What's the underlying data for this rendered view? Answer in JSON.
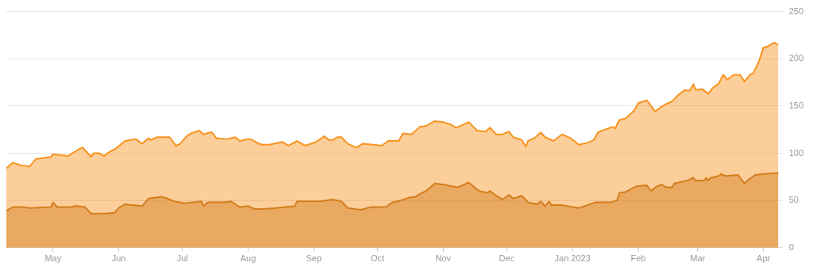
{
  "chart_data": {
    "type": "area",
    "legend": false,
    "grid": "y",
    "xlim": [
      "2022-04-09",
      "2023-04-10"
    ],
    "xticks": [
      {
        "value": "2022-05-01",
        "label": "May"
      },
      {
        "value": "2022-06-01",
        "label": "Jun"
      },
      {
        "value": "2022-07-01",
        "label": "Jul"
      },
      {
        "value": "2022-08-01",
        "label": "Aug"
      },
      {
        "value": "2022-09-01",
        "label": "Sep"
      },
      {
        "value": "2022-10-01",
        "label": "Oct"
      },
      {
        "value": "2022-11-01",
        "label": "Nov"
      },
      {
        "value": "2022-12-01",
        "label": "Dec"
      },
      {
        "value": "2023-01-01",
        "label": "Jan 2023"
      },
      {
        "value": "2023-02-01",
        "label": "Feb"
      },
      {
        "value": "2023-03-01",
        "label": "Mar"
      },
      {
        "value": "2023-04-01",
        "label": "Apr"
      }
    ],
    "ylim": [
      0,
      250
    ],
    "yticks": [
      0,
      50,
      100,
      150,
      200,
      250
    ],
    "series": [
      {
        "color": "#d47d1c",
        "x": [
          "2022-04-09",
          "2022-04-12",
          "2022-04-17",
          "2022-04-20",
          "2022-04-30",
          "2022-05-01",
          "2022-05-03",
          "2022-05-09",
          "2022-05-12",
          "2022-05-16",
          "2022-05-19",
          "2022-05-26",
          "2022-05-30",
          "2022-06-01",
          "2022-06-04",
          "2022-06-12",
          "2022-06-15",
          "2022-06-21",
          "2022-06-24",
          "2022-06-27",
          "2022-07-02",
          "2022-07-10",
          "2022-07-11",
          "2022-07-13",
          "2022-07-21",
          "2022-07-24",
          "2022-07-28",
          "2022-08-01",
          "2022-08-04",
          "2022-08-08",
          "2022-08-14",
          "2022-08-23",
          "2022-08-24",
          "2022-09-04",
          "2022-09-10",
          "2022-09-14",
          "2022-09-17",
          "2022-09-23",
          "2022-09-28",
          "2022-10-05",
          "2022-10-08",
          "2022-10-12",
          "2022-10-16",
          "2022-10-19",
          "2022-10-21",
          "2022-10-24",
          "2022-10-28",
          "2022-11-01",
          "2022-11-05",
          "2022-11-08",
          "2022-11-11",
          "2022-11-13",
          "2022-11-18",
          "2022-11-22",
          "2022-11-23",
          "2022-11-26",
          "2022-11-29",
          "2022-12-02",
          "2022-12-04",
          "2022-12-08",
          "2022-12-11",
          "2022-12-15",
          "2022-12-17",
          "2022-12-19",
          "2022-12-21",
          "2022-12-22",
          "2022-12-27",
          "2023-01-04",
          "2023-01-08",
          "2023-01-12",
          "2023-01-19",
          "2023-01-22",
          "2023-01-23",
          "2023-01-26",
          "2023-01-31",
          "2023-02-05",
          "2023-02-07",
          "2023-02-09",
          "2023-02-12",
          "2023-02-14",
          "2023-02-17",
          "2023-02-18",
          "2023-02-24",
          "2023-02-27",
          "2023-02-28",
          "2023-03-04",
          "2023-03-05",
          "2023-03-06",
          "2023-03-07",
          "2023-03-11",
          "2023-03-12",
          "2023-03-14",
          "2023-03-20",
          "2023-03-22",
          "2023-03-23",
          "2023-03-25",
          "2023-03-28",
          "2023-04-01",
          "2023-04-08"
        ],
        "values": [
          39,
          43,
          43,
          42,
          43,
          48,
          43,
          43,
          44,
          43,
          36,
          36,
          37,
          42,
          46,
          44,
          52,
          54,
          52,
          49,
          47,
          49,
          44,
          48,
          48,
          49,
          43,
          44,
          41,
          41,
          42,
          44,
          49,
          49,
          51,
          49,
          42,
          40,
          43,
          43,
          48,
          50,
          53,
          54,
          57,
          60,
          68,
          67,
          65,
          64,
          67,
          69,
          60,
          58,
          60,
          55,
          51,
          56,
          52,
          55,
          48,
          46,
          49,
          44,
          49,
          45,
          45,
          42,
          45,
          48,
          48,
          50,
          58,
          59,
          65,
          66,
          60,
          64,
          67,
          64,
          64,
          68,
          71,
          74,
          71,
          71,
          74,
          71,
          74,
          76,
          78,
          76,
          77,
          71,
          68,
          72,
          77,
          78,
          79
        ]
      },
      {
        "color": "#f7931e",
        "x": [
          "2022-04-09",
          "2022-04-12",
          "2022-04-16",
          "2022-04-20",
          "2022-04-23",
          "2022-04-30",
          "2022-05-01",
          "2022-05-05",
          "2022-05-08",
          "2022-05-13",
          "2022-05-15",
          "2022-05-19",
          "2022-05-20",
          "2022-05-23",
          "2022-05-25",
          "2022-05-28",
          "2022-05-30",
          "2022-06-04",
          "2022-06-09",
          "2022-06-12",
          "2022-06-15",
          "2022-06-16",
          "2022-06-19",
          "2022-06-25",
          "2022-06-28",
          "2022-06-30",
          "2022-07-03",
          "2022-07-05",
          "2022-07-09",
          "2022-07-11",
          "2022-07-14",
          "2022-07-15",
          "2022-07-17",
          "2022-07-22",
          "2022-07-26",
          "2022-07-28",
          "2022-08-01",
          "2022-08-03",
          "2022-08-06",
          "2022-08-08",
          "2022-08-11",
          "2022-08-17",
          "2022-08-20",
          "2022-08-24",
          "2022-08-28",
          "2022-09-02",
          "2022-09-06",
          "2022-09-08",
          "2022-09-10",
          "2022-09-12",
          "2022-09-14",
          "2022-09-17",
          "2022-09-21",
          "2022-09-24",
          "2022-09-29",
          "2022-10-03",
          "2022-10-06",
          "2022-10-11",
          "2022-10-13",
          "2022-10-17",
          "2022-10-21",
          "2022-10-24",
          "2022-10-28",
          "2022-11-01",
          "2022-11-05",
          "2022-11-07",
          "2022-11-11",
          "2022-11-13",
          "2022-11-17",
          "2022-11-21",
          "2022-11-23",
          "2022-11-26",
          "2022-11-29",
          "2022-12-02",
          "2022-12-04",
          "2022-12-08",
          "2022-12-10",
          "2022-12-11",
          "2022-12-14",
          "2022-12-17",
          "2022-12-19",
          "2022-12-23",
          "2022-12-27",
          "2022-12-31",
          "2023-01-04",
          "2023-01-08",
          "2023-01-11",
          "2023-01-13",
          "2023-01-15",
          "2023-01-20",
          "2023-01-21",
          "2023-01-23",
          "2023-01-26",
          "2023-01-30",
          "2023-02-01",
          "2023-02-05",
          "2023-02-09",
          "2023-02-11",
          "2023-02-14",
          "2023-02-17",
          "2023-02-20",
          "2023-02-23",
          "2023-02-25",
          "2023-02-27",
          "2023-02-28",
          "2023-03-03",
          "2023-03-06",
          "2023-03-08",
          "2023-03-11",
          "2023-03-13",
          "2023-03-15",
          "2023-03-18",
          "2023-03-21",
          "2023-03-23",
          "2023-03-26",
          "2023-03-27",
          "2023-03-30",
          "2023-04-01",
          "2023-04-03",
          "2023-04-06",
          "2023-04-08"
        ],
        "values": [
          84,
          90,
          87,
          86,
          94,
          96,
          99,
          98,
          97,
          104,
          106,
          96,
          100,
          100,
          97,
          102,
          104,
          113,
          115,
          110,
          116,
          114,
          117,
          117,
          108,
          110,
          118,
          121,
          124,
          120,
          122,
          122,
          116,
          115,
          117,
          113,
          115,
          114,
          110,
          109,
          109,
          112,
          108,
          113,
          108,
          112,
          118,
          114,
          114,
          117,
          117,
          110,
          106,
          110,
          109,
          108,
          113,
          113,
          121,
          120,
          128,
          129,
          134,
          133,
          130,
          127,
          131,
          133,
          124,
          123,
          127,
          120,
          120,
          123,
          117,
          114,
          107,
          113,
          116,
          122,
          117,
          113,
          120,
          116,
          109,
          111,
          114,
          122,
          124,
          128,
          126,
          135,
          137,
          145,
          153,
          156,
          144,
          148,
          152,
          155,
          162,
          167,
          166,
          173,
          167,
          168,
          163,
          169,
          174,
          183,
          178,
          183,
          183,
          176,
          184,
          184,
          198,
          212,
          213,
          217,
          215
        ]
      }
    ]
  }
}
